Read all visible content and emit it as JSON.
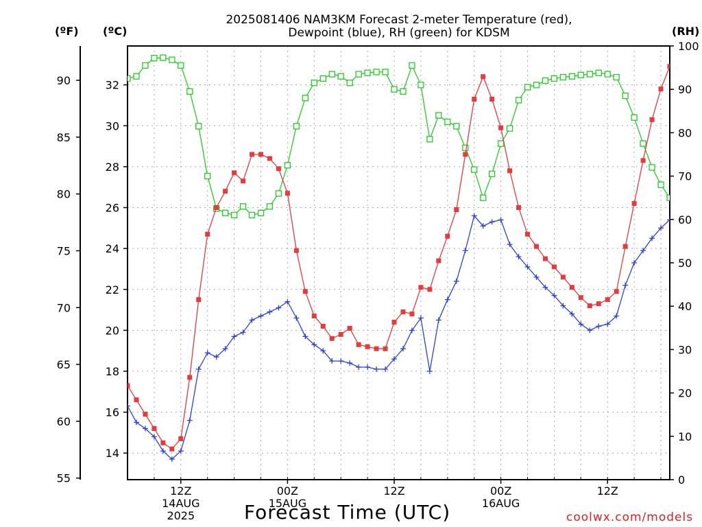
{
  "title": {
    "line1": "2025081406 NAM3KM Forecast 2-meter Temperature (red),",
    "line2": "Dewpoint (blue), RH (green) for KDSM"
  },
  "units": {
    "fahrenheit": "(ºF)",
    "celsius": "(ºC)",
    "rh": "(RH)"
  },
  "xlabel": "Forecast Time (UTC)",
  "credit": "coolwx.com/models",
  "colors": {
    "temperature": "#e8393c",
    "dewpoint": "#2b3fe0",
    "rh": "#22cc22",
    "grid": "#a8a8a8"
  },
  "chart_data": {
    "type": "line",
    "title": "2025081406 NAM3KM Forecast 2-meter Temperature (red), Dewpoint (blue), RH (green) for KDSM",
    "xlabel": "Forecast Time (UTC)",
    "x_unit": "forecast hour from 2025-08-14 06Z",
    "x": [
      0,
      1,
      2,
      3,
      4,
      5,
      6,
      7,
      8,
      9,
      10,
      11,
      12,
      13,
      14,
      15,
      16,
      17,
      18,
      19,
      20,
      21,
      22,
      23,
      24,
      25,
      26,
      27,
      28,
      29,
      30,
      31,
      32,
      33,
      34,
      35,
      36,
      37,
      38,
      39,
      40,
      41,
      42,
      43,
      44,
      45,
      46,
      47,
      48,
      49,
      50,
      51,
      52,
      53,
      54,
      55,
      56,
      57,
      58,
      59,
      60,
      61
    ],
    "xlim": [
      0,
      61
    ],
    "x_ticks": [
      {
        "hour": 6,
        "label": "12Z",
        "sublabel1": "14AUG",
        "sublabel2": "2025"
      },
      {
        "hour": 18,
        "label": "00Z",
        "sublabel1": "15AUG",
        "sublabel2": ""
      },
      {
        "hour": 30,
        "label": "12Z",
        "sublabel1": "",
        "sublabel2": ""
      },
      {
        "hour": 42,
        "label": "00Z",
        "sublabel1": "16AUG",
        "sublabel2": ""
      },
      {
        "hour": 54,
        "label": "12Z",
        "sublabel1": "",
        "sublabel2": ""
      }
    ],
    "y_celsius": {
      "label": "(ºC)",
      "ylim": [
        12.7,
        33.9
      ],
      "ticks": [
        14,
        16,
        18,
        20,
        22,
        24,
        26,
        28,
        30,
        32
      ]
    },
    "y_fahrenheit": {
      "label": "(ºF)",
      "ticks": [
        55,
        60,
        65,
        70,
        75,
        80,
        85,
        90
      ]
    },
    "y_rh": {
      "label": "(RH)",
      "ylim": [
        0,
        100
      ],
      "ticks": [
        0,
        10,
        20,
        30,
        40,
        50,
        60,
        70,
        80,
        90,
        100
      ]
    },
    "grid": true,
    "series": [
      {
        "name": "Temperature",
        "unit": "ºC",
        "axis": "celsius",
        "marker": "filled-square",
        "values": [
          17.3,
          16.6,
          15.9,
          15.2,
          14.5,
          14.2,
          14.7,
          17.7,
          21.5,
          24.7,
          26.0,
          26.8,
          27.7,
          27.3,
          28.6,
          28.6,
          28.4,
          27.9,
          26.7,
          23.9,
          21.9,
          20.7,
          20.2,
          19.6,
          19.8,
          20.1,
          19.3,
          19.2,
          19.1,
          19.1,
          20.4,
          20.9,
          20.8,
          22.1,
          22.0,
          23.4,
          24.6,
          25.9,
          28.6,
          31.3,
          32.4,
          31.3,
          29.9,
          27.8,
          26.0,
          24.7,
          24.1,
          23.5,
          23.1,
          22.6,
          22.1,
          21.6,
          21.2,
          21.3,
          21.5,
          21.9,
          24.1,
          26.2,
          28.3,
          30.3,
          31.8,
          32.9
        ]
      },
      {
        "name": "Dewpoint",
        "unit": "ºC",
        "axis": "celsius",
        "marker": "plus",
        "values": [
          16.3,
          15.5,
          15.2,
          14.8,
          14.1,
          13.7,
          14.1,
          15.6,
          18.1,
          18.9,
          18.7,
          19.1,
          19.7,
          19.9,
          20.5,
          20.7,
          20.9,
          21.1,
          21.4,
          20.6,
          19.7,
          19.3,
          19.0,
          18.5,
          18.5,
          18.4,
          18.2,
          18.2,
          18.1,
          18.1,
          18.6,
          19.1,
          20.0,
          20.6,
          18.0,
          20.5,
          21.5,
          22.4,
          23.9,
          25.6,
          25.1,
          25.3,
          25.4,
          24.2,
          23.6,
          23.1,
          22.6,
          22.1,
          21.7,
          21.2,
          20.8,
          20.3,
          20.0,
          20.2,
          20.3,
          20.7,
          22.2,
          23.3,
          23.9,
          24.5,
          25.0,
          25.4
        ]
      },
      {
        "name": "RH",
        "unit": "%",
        "axis": "rh",
        "marker": "open-square",
        "values": [
          92.5,
          93.0,
          95.5,
          97.2,
          97.3,
          96.8,
          95.5,
          89.5,
          81.5,
          70.0,
          62.5,
          61.5,
          61.0,
          63.0,
          61.0,
          61.5,
          63.0,
          66.0,
          72.5,
          81.5,
          88.0,
          91.5,
          92.5,
          93.5,
          93.0,
          91.5,
          93.5,
          93.8,
          94.0,
          94.0,
          90.0,
          89.5,
          95.5,
          91.0,
          78.5,
          84.0,
          82.5,
          81.5,
          76.5,
          71.5,
          65.0,
          70.5,
          77.5,
          81.0,
          87.5,
          90.5,
          91.0,
          92.0,
          92.5,
          92.8,
          93.0,
          93.3,
          93.5,
          93.8,
          93.5,
          92.8,
          88.5,
          83.5,
          77.5,
          72.0,
          68.0,
          65.0
        ]
      }
    ]
  }
}
